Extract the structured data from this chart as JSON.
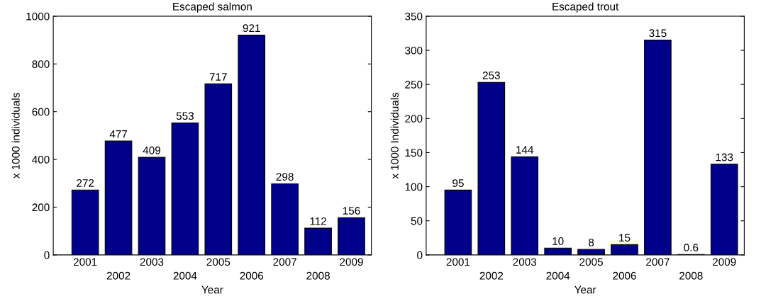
{
  "chart_data": [
    {
      "type": "bar",
      "title": "Escaped salmon",
      "xlabel": "Year",
      "ylabel": "x 1000 individuals",
      "categories": [
        "2001",
        "2002",
        "2003",
        "2004",
        "2005",
        "2006",
        "2007",
        "2008",
        "2009"
      ],
      "values": [
        272,
        477,
        409,
        553,
        717,
        921,
        298,
        112,
        156
      ],
      "color": "#00008b",
      "ylim": [
        0,
        1000
      ],
      "yticks": [
        0,
        200,
        400,
        600,
        800,
        1000
      ],
      "data_labels": true,
      "grid": false
    },
    {
      "type": "bar",
      "title": "Escaped trout",
      "xlabel": "Year",
      "ylabel": "x 1000 Individuals",
      "categories": [
        "2001",
        "2002",
        "2003",
        "2004",
        "2005",
        "2006",
        "2007",
        "2008",
        "2009"
      ],
      "values": [
        95,
        253,
        144,
        10,
        8,
        15,
        315,
        0.6,
        133
      ],
      "color": "#00008b",
      "ylim": [
        0,
        350
      ],
      "yticks": [
        0,
        50,
        100,
        150,
        200,
        250,
        300,
        350
      ],
      "data_labels": true,
      "grid": false
    }
  ]
}
